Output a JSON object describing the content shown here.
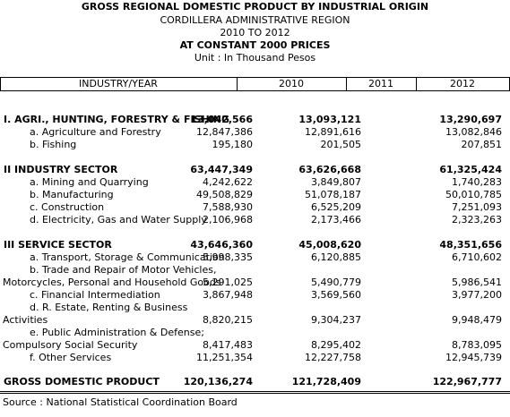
{
  "header": {
    "title": "GROSS REGIONAL DOMESTIC PRODUCT BY INDUSTRIAL ORIGIN",
    "region": "CORDILLERA ADMINISTRATIVE REGION",
    "period": "2010 TO 2012",
    "prices": "AT CONSTANT 2000 PRICES",
    "unit": "Unit : In Thousand Pesos"
  },
  "table": {
    "col_industry": "INDUSTRY/YEAR",
    "years": [
      "2010",
      "2011",
      "2012"
    ],
    "rows": [
      {
        "label": "I. AGRI., HUNTING, FORESTRY & FISHING",
        "values": [
          "13,042,566",
          "13,093,121",
          "13,290,697"
        ]
      },
      {
        "label": "a. Agriculture and Forestry",
        "values": [
          "12,847,386",
          "12,891,616",
          "13,082,846"
        ]
      },
      {
        "label": "b. Fishing",
        "values": [
          "195,180",
          "201,505",
          "207,851"
        ]
      },
      {
        "label": "II  INDUSTRY SECTOR",
        "values": [
          "63,447,349",
          "63,626,668",
          "61,325,424"
        ]
      },
      {
        "label": "a. Mining and Quarrying",
        "values": [
          "4,242,622",
          "3,849,807",
          "1,740,283"
        ]
      },
      {
        "label": "b. Manufacturing",
        "values": [
          "49,508,829",
          "51,078,187",
          "50,010,785"
        ]
      },
      {
        "label": "c. Construction",
        "values": [
          "7,588,930",
          "6,525,209",
          "7,251,093"
        ]
      },
      {
        "label": "d. Electricity, Gas and Water Supply",
        "values": [
          "2,106,968",
          "2,173,466",
          "2,323,263"
        ]
      },
      {
        "label": "III  SERVICE SECTOR",
        "values": [
          "43,646,360",
          "45,008,620",
          "48,351,656"
        ]
      },
      {
        "label": "a. Transport, Storage & Communication",
        "values": [
          "5,998,335",
          "6,120,885",
          "6,710,602"
        ]
      },
      {
        "label": "b. Trade and Repair of Motor Vehicles,",
        "values": [
          "",
          "",
          ""
        ]
      },
      {
        "label": "Motorcycles, Personal and Household Goods",
        "values": [
          "5,291,025",
          "5,490,779",
          "5,986,541"
        ]
      },
      {
        "label": "c.  Financial Intermediation",
        "values": [
          "3,867,948",
          "3,569,560",
          "3,977,200"
        ]
      },
      {
        "label": "d. R. Estate, Renting & Business",
        "values": [
          "",
          "",
          ""
        ]
      },
      {
        "label": "Activities",
        "values": [
          "8,820,215",
          "9,304,237",
          "9,948,479"
        ]
      },
      {
        "label": "e. Public Administration & Defense;",
        "values": [
          "",
          "",
          ""
        ]
      },
      {
        "label": "Compulsory Social Security",
        "values": [
          "8,417,483",
          "8,295,402",
          "8,783,095"
        ]
      },
      {
        "label": "f. Other Services",
        "values": [
          "11,251,354",
          "12,227,758",
          "12,945,739"
        ]
      },
      {
        "label": "GROSS DOMESTIC PRODUCT",
        "values": [
          "120,136,274",
          "121,728,409",
          "122,967,777"
        ]
      }
    ]
  },
  "source": "Source : National Statistical Coordination Board"
}
